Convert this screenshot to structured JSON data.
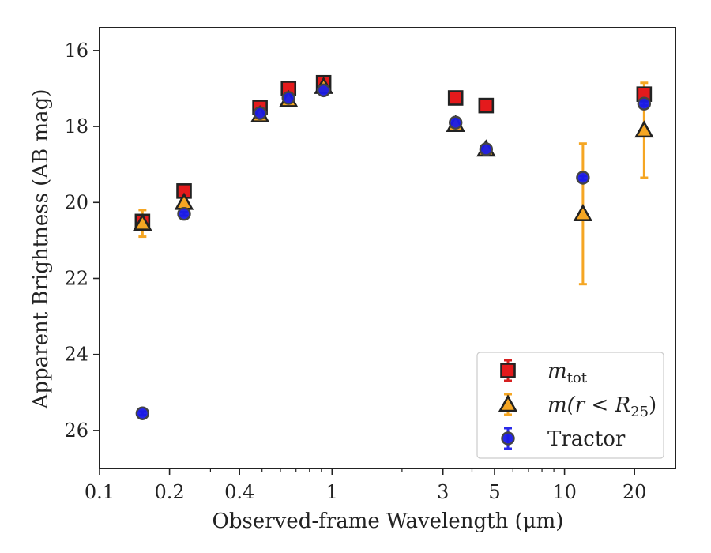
{
  "chart_data": {
    "type": "scatter",
    "title": "",
    "xlabel": "Observed-frame Wavelength (μm)",
    "ylabel": "Apparent Brightness (AB mag)",
    "xscale": "log",
    "xlim": [
      0.1,
      30
    ],
    "ylim": [
      27.0,
      15.4
    ],
    "y_inverted": true,
    "x_ticks": [
      0.1,
      0.2,
      0.4,
      1,
      3,
      5,
      10,
      20
    ],
    "x_tick_labels": [
      "0.1",
      "0.2",
      "0.4",
      "1",
      "3",
      "5",
      "10",
      "20"
    ],
    "y_ticks": [
      16,
      18,
      20,
      22,
      24,
      26
    ],
    "y_tick_labels": [
      "16",
      "18",
      "20",
      "22",
      "24",
      "26"
    ],
    "grid": false,
    "legend_position": "lower-right",
    "series": [
      {
        "name": "m_tot",
        "legend_main": "m",
        "legend_sub": "tot",
        "marker": "square",
        "face_color": "#e41a1c",
        "error_color": "#d62020",
        "points": [
          {
            "x": 0.153,
            "y": 20.5,
            "err": 0.15
          },
          {
            "x": 0.231,
            "y": 19.7,
            "err": 0.05
          },
          {
            "x": 0.49,
            "y": 17.5,
            "err": 0.05
          },
          {
            "x": 0.65,
            "y": 17.0,
            "err": 0.05
          },
          {
            "x": 0.92,
            "y": 16.85,
            "err": 0.05
          },
          {
            "x": 3.4,
            "y": 17.25,
            "err": 0.05
          },
          {
            "x": 4.6,
            "y": 17.45,
            "err": 0.05
          },
          {
            "x": 22.0,
            "y": 17.15,
            "err": 0.05
          }
        ]
      },
      {
        "name": "m(r < R25)",
        "legend_main": "m(r < R",
        "legend_sub": "25",
        "legend_close": ")",
        "marker": "triangle",
        "face_color": "#f5a623",
        "error_color": "#f5a623",
        "points": [
          {
            "x": 0.153,
            "y": 20.55,
            "err": 0.35
          },
          {
            "x": 0.231,
            "y": 20.0,
            "err": 0.05
          },
          {
            "x": 0.49,
            "y": 17.7,
            "err": 0.05
          },
          {
            "x": 0.65,
            "y": 17.3,
            "err": 0.05
          },
          {
            "x": 0.92,
            "y": 16.95,
            "err": 0.05
          },
          {
            "x": 3.4,
            "y": 17.95,
            "err": 0.05
          },
          {
            "x": 4.6,
            "y": 18.6,
            "err": 0.05
          },
          {
            "x": 12.0,
            "y": 20.3,
            "err": 1.85
          },
          {
            "x": 22.0,
            "y": 18.1,
            "err": 1.25
          }
        ]
      },
      {
        "name": "Tractor",
        "marker": "circle",
        "face_color": "#1a1ae6",
        "error_color": "#2a2ae8",
        "points": [
          {
            "x": 0.153,
            "y": 25.55,
            "err": 0.05
          },
          {
            "x": 0.231,
            "y": 20.3,
            "err": 0.05
          },
          {
            "x": 0.49,
            "y": 17.65,
            "err": 0.05
          },
          {
            "x": 0.65,
            "y": 17.25,
            "err": 0.05
          },
          {
            "x": 0.92,
            "y": 17.05,
            "err": 0.05
          },
          {
            "x": 3.4,
            "y": 17.9,
            "err": 0.05
          },
          {
            "x": 4.6,
            "y": 18.6,
            "err": 0.05
          },
          {
            "x": 12.0,
            "y": 19.35,
            "err": 0.05
          },
          {
            "x": 22.0,
            "y": 17.4,
            "err": 0.05
          }
        ]
      }
    ],
    "colors": {
      "edge": "#222222",
      "axis": "#222222"
    }
  }
}
